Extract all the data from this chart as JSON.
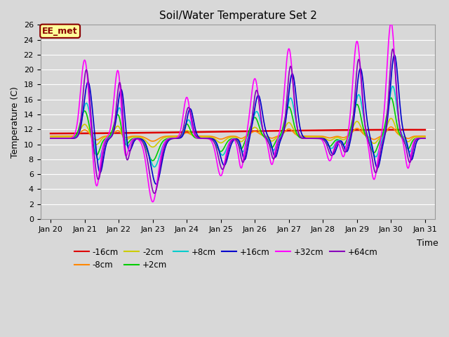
{
  "title": "Soil/Water Temperature Set 2",
  "xlabel": "Time",
  "ylabel": "Temperature (C)",
  "xtick_labels": [
    "Jan 20",
    "Jan 21",
    "Jan 22",
    "Jan 23",
    "Jan 24",
    "Jan 25",
    "Jan 26",
    "Jan 27",
    "Jan 28",
    "Jan 29",
    "Jan 30",
    "Jan 31"
  ],
  "ylim": [
    0,
    26
  ],
  "yticks": [
    0,
    2,
    4,
    6,
    8,
    10,
    12,
    14,
    16,
    18,
    20,
    22,
    24,
    26
  ],
  "plot_bg_color": "#d8d8d8",
  "fig_bg_color": "#d8d8d8",
  "grid_color": "#ffffff",
  "annotation_text": "EE_met",
  "annotation_box_color": "#ffff99",
  "annotation_border_color": "#8B0000",
  "annotation_text_color": "#8B0000",
  "series_colors": {
    "-16cm": "#dd0000",
    "-8cm": "#ff8800",
    "-2cm": "#cccc00",
    "+2cm": "#00cc00",
    "+8cm": "#00cccc",
    "+16cm": "#0000cc",
    "+32cm": "#ff00ff",
    "+64cm": "#8800bb"
  },
  "legend_order": [
    "-16cm",
    "-8cm",
    "-2cm",
    "+2cm",
    "+8cm",
    "+16cm",
    "+32cm",
    "+64cm"
  ]
}
